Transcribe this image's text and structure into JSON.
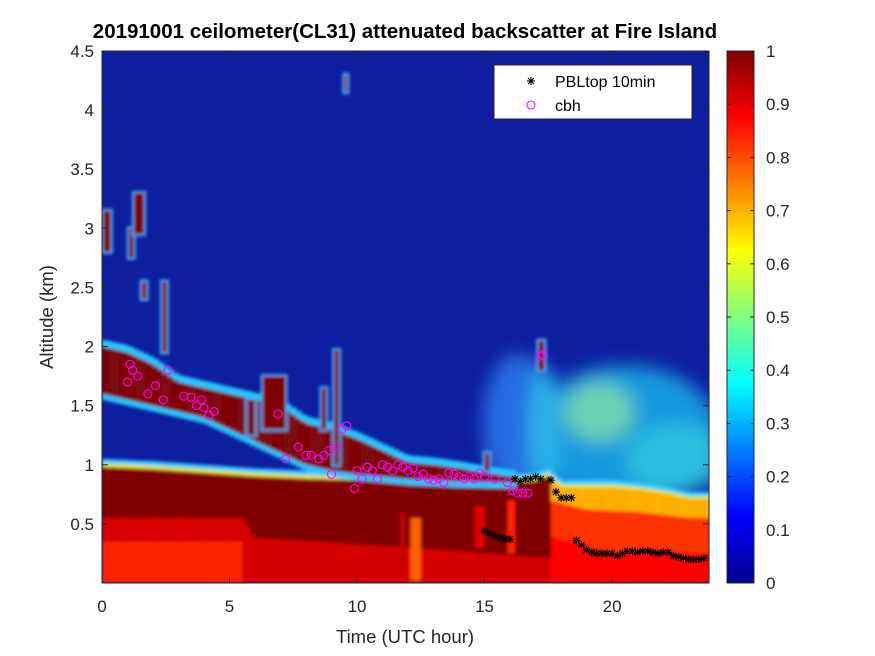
{
  "chart_data": {
    "type": "heatmap",
    "title": "20191001 ceilometer(CL31) attenuated backscatter at Fire Island",
    "xlabel": "Time (UTC hour)",
    "ylabel": "Altitude (km)",
    "xlim": [
      0,
      23.8
    ],
    "ylim": [
      0,
      4.5
    ],
    "x_ticks": [
      0,
      5,
      10,
      15,
      20
    ],
    "x_tick_labels": [
      "0",
      "5",
      "10",
      "15",
      "20"
    ],
    "y_ticks": [
      0.5,
      1,
      1.5,
      2,
      2.5,
      3,
      3.5,
      4,
      4.5
    ],
    "y_tick_labels": [
      "0.5",
      "1",
      "1.5",
      "2",
      "2.5",
      "3",
      "3.5",
      "4",
      "4.5"
    ],
    "colorbar": {
      "colormap": "jet",
      "clim": [
        0,
        1
      ],
      "ticks": [
        0,
        0.1,
        0.2,
        0.3,
        0.4,
        0.5,
        0.6,
        0.7,
        0.8,
        0.9,
        1
      ],
      "tick_labels": [
        "0",
        "0.1",
        "0.2",
        "0.3",
        "0.4",
        "0.5",
        "0.6",
        "0.7",
        "0.8",
        "0.9",
        "1"
      ]
    },
    "legend": {
      "location": "top-right",
      "entries": [
        {
          "label": "PBLtop 10min",
          "marker": "asterisk",
          "color": "#000000"
        },
        {
          "label": "cbh",
          "marker": "circle",
          "color": "#ff00ff"
        }
      ]
    },
    "series": [
      {
        "name": "PBLtop 10min",
        "x": [
          15.0,
          15.2,
          15.4,
          15.6,
          15.8,
          16.0,
          16.2,
          16.4,
          16.6,
          16.8,
          17.0,
          17.2,
          17.6,
          17.8,
          18.0,
          18.2,
          18.4,
          18.6,
          18.8,
          19.0,
          19.2,
          19.4,
          19.6,
          19.8,
          20.0,
          20.2,
          20.4,
          20.6,
          20.8,
          21.0,
          21.2,
          21.4,
          21.6,
          21.8,
          22.0,
          22.2,
          22.4,
          22.6,
          22.8,
          23.0,
          23.2,
          23.4,
          23.6
        ],
        "y": [
          0.44,
          0.42,
          0.4,
          0.38,
          0.37,
          0.37,
          0.88,
          0.86,
          0.88,
          0.88,
          0.9,
          0.88,
          0.87,
          0.77,
          0.72,
          0.72,
          0.72,
          0.36,
          0.32,
          0.28,
          0.26,
          0.25,
          0.25,
          0.25,
          0.25,
          0.23,
          0.25,
          0.27,
          0.27,
          0.26,
          0.27,
          0.27,
          0.26,
          0.25,
          0.26,
          0.26,
          0.23,
          0.22,
          0.21,
          0.2,
          0.2,
          0.2,
          0.21
        ]
      },
      {
        "name": "cbh",
        "x": [
          1.0,
          1.1,
          1.2,
          1.4,
          1.8,
          2.1,
          2.4,
          2.6,
          3.2,
          3.5,
          3.7,
          3.9,
          4.0,
          4.2,
          4.4,
          6.9,
          7.2,
          7.7,
          8.0,
          8.2,
          8.5,
          8.7,
          8.9,
          9.0,
          9.2,
          9.4,
          9.6,
          9.9,
          10.0,
          10.2,
          10.4,
          10.6,
          10.8,
          11.0,
          11.2,
          11.4,
          11.6,
          11.8,
          12.0,
          12.2,
          12.4,
          12.6,
          12.8,
          13.0,
          13.2,
          13.4,
          13.6,
          13.8,
          14.0,
          14.2,
          14.4,
          14.6,
          14.8,
          15.0,
          15.4,
          15.9,
          16.1,
          16.3,
          16.5,
          16.7,
          17.2,
          17.3
        ],
        "y": [
          1.7,
          1.85,
          1.8,
          1.75,
          1.6,
          1.67,
          1.55,
          1.8,
          1.58,
          1.57,
          1.5,
          1.55,
          1.48,
          1.42,
          1.45,
          1.43,
          1.05,
          1.15,
          1.08,
          1.08,
          1.05,
          1.08,
          1.12,
          0.92,
          1.15,
          1.3,
          1.33,
          0.8,
          0.95,
          0.88,
          0.98,
          0.95,
          0.88,
          1.0,
          0.98,
          0.95,
          1.0,
          0.98,
          0.95,
          0.97,
          0.9,
          0.92,
          0.88,
          0.87,
          0.88,
          0.85,
          0.93,
          0.92,
          0.9,
          0.88,
          0.9,
          0.88,
          0.93,
          0.9,
          0.88,
          0.85,
          0.78,
          0.76,
          0.76,
          0.76,
          1.92,
          1.93
        ]
      }
    ]
  }
}
